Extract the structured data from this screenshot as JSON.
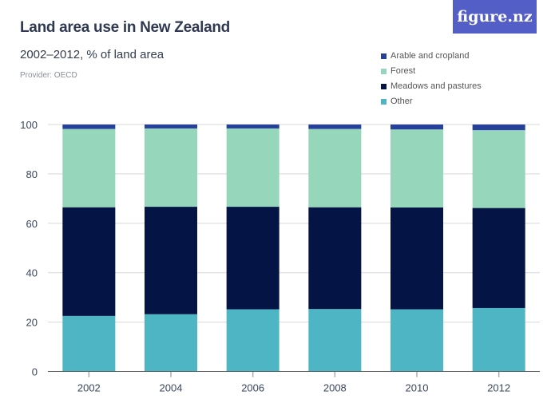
{
  "logo": "figure.nz",
  "chart_data": {
    "type": "bar",
    "stacked": true,
    "title": "Land area use in New Zealand",
    "subtitle": "2002–2012, % of land area",
    "provider": "Provider: OECD",
    "categories": [
      "2002",
      "2004",
      "2006",
      "2008",
      "2010",
      "2012"
    ],
    "ylim": [
      0,
      100
    ],
    "yticks": [
      "0",
      "20",
      "40",
      "60",
      "80",
      "100"
    ],
    "grid": true,
    "legend_position": "top-right",
    "series": [
      {
        "name": "Other",
        "color": "#4eb5c4",
        "values": [
          22.5,
          23.2,
          25.2,
          25.3,
          25.2,
          25.7
        ]
      },
      {
        "name": "Meadows and pastures",
        "color": "#041444",
        "values": [
          44.0,
          43.5,
          41.5,
          41.2,
          41.2,
          40.5
        ]
      },
      {
        "name": "Forest",
        "color": "#96d6bb",
        "values": [
          31.7,
          31.7,
          31.7,
          31.7,
          31.6,
          31.5
        ]
      },
      {
        "name": "Arable and cropland",
        "color": "#27419a",
        "values": [
          1.8,
          1.6,
          1.6,
          1.8,
          2.0,
          2.3
        ]
      }
    ]
  }
}
